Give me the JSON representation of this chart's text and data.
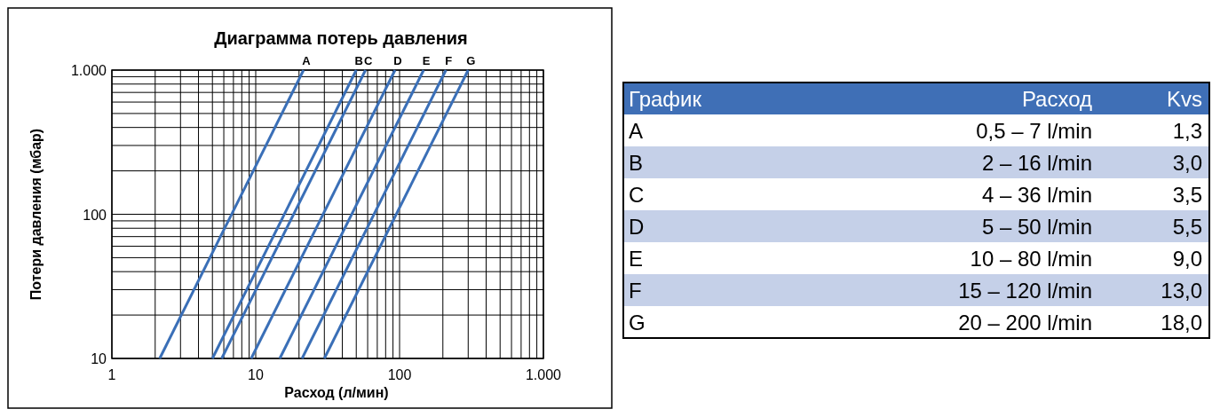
{
  "chart_data": [
    {
      "type": "line",
      "title": "Диаграмма потерь давления",
      "xlabel": "Расход (л/мин)",
      "ylabel": "Потери давления (мбар)",
      "log": "xy",
      "grid": true,
      "marker": "none",
      "line_style": "solid",
      "xlim": [
        1,
        1000
      ],
      "ylim": [
        10,
        1000
      ],
      "xticks": [
        {
          "value": 1,
          "label": "1"
        },
        {
          "value": 2,
          "label": null
        },
        {
          "value": 3,
          "label": null
        },
        {
          "value": 4,
          "label": null
        },
        {
          "value": 5,
          "label": null
        },
        {
          "value": 6,
          "label": null
        },
        {
          "value": 7,
          "label": null
        },
        {
          "value": 8,
          "label": null
        },
        {
          "value": 9,
          "label": null
        },
        {
          "value": 10,
          "label": "10"
        },
        {
          "value": 20,
          "label": null
        },
        {
          "value": 30,
          "label": null
        },
        {
          "value": 40,
          "label": null
        },
        {
          "value": 50,
          "label": null
        },
        {
          "value": 60,
          "label": null
        },
        {
          "value": 70,
          "label": null
        },
        {
          "value": 80,
          "label": null
        },
        {
          "value": 90,
          "label": null
        },
        {
          "value": 100,
          "label": "100"
        },
        {
          "value": 200,
          "label": null
        },
        {
          "value": 300,
          "label": null
        },
        {
          "value": 400,
          "label": null
        },
        {
          "value": 500,
          "label": null
        },
        {
          "value": 600,
          "label": null
        },
        {
          "value": 700,
          "label": null
        },
        {
          "value": 800,
          "label": null
        },
        {
          "value": 900,
          "label": null
        },
        {
          "value": 1000,
          "label": "1.000"
        }
      ],
      "yticks": [
        {
          "value": 10,
          "label": "10"
        },
        {
          "value": 20,
          "label": null
        },
        {
          "value": 30,
          "label": null
        },
        {
          "value": 40,
          "label": null
        },
        {
          "value": 50,
          "label": null
        },
        {
          "value": 60,
          "label": null
        },
        {
          "value": 70,
          "label": null
        },
        {
          "value": 80,
          "label": null
        },
        {
          "value": 90,
          "label": null
        },
        {
          "value": 100,
          "label": "100"
        },
        {
          "value": 200,
          "label": null
        },
        {
          "value": 300,
          "label": null
        },
        {
          "value": 400,
          "label": null
        },
        {
          "value": 500,
          "label": null
        },
        {
          "value": 600,
          "label": null
        },
        {
          "value": 700,
          "label": null
        },
        {
          "value": 800,
          "label": null
        },
        {
          "value": 900,
          "label": null
        },
        {
          "value": 1000,
          "label": "1.000"
        }
      ],
      "series": [
        {
          "name": "A",
          "color": "#3a6fb7",
          "x": [
            2.15,
            21.5
          ],
          "values": [
            10,
            1000
          ]
        },
        {
          "name": "B",
          "color": "#3a6fb7",
          "x": [
            5,
            50
          ],
          "values": [
            10,
            1000
          ]
        },
        {
          "name": "C",
          "color": "#3a6fb7",
          "x": [
            5.8,
            58
          ],
          "values": [
            10,
            1000
          ]
        },
        {
          "name": "D",
          "color": "#3a6fb7",
          "x": [
            9.3,
            93
          ],
          "values": [
            10,
            1000
          ]
        },
        {
          "name": "E",
          "color": "#3a6fb7",
          "x": [
            14.7,
            147
          ],
          "values": [
            10,
            1000
          ]
        },
        {
          "name": "F",
          "color": "#3a6fb7",
          "x": [
            21,
            210
          ],
          "values": [
            10,
            1000
          ]
        },
        {
          "name": "G",
          "color": "#3a6fb7",
          "x": [
            30,
            300
          ],
          "values": [
            10,
            1000
          ]
        }
      ]
    },
    {
      "type": "other",
      "annotations": [
        "График",
        "Расход",
        "Kvs",
        "A",
        "0,5 – 7 l/min",
        "1,3",
        "B",
        "2 – 16 l/min",
        "3,0",
        "C",
        "4 – 36 l/min",
        "3,5",
        "D",
        "5 – 50 l/min",
        "5,5",
        "E",
        "10 – 80 l/min",
        "9,0",
        "F",
        "15 – 120 l/min",
        "13,0",
        "G",
        "20 – 200 l/min",
        "18,0"
      ]
    }
  ]
}
